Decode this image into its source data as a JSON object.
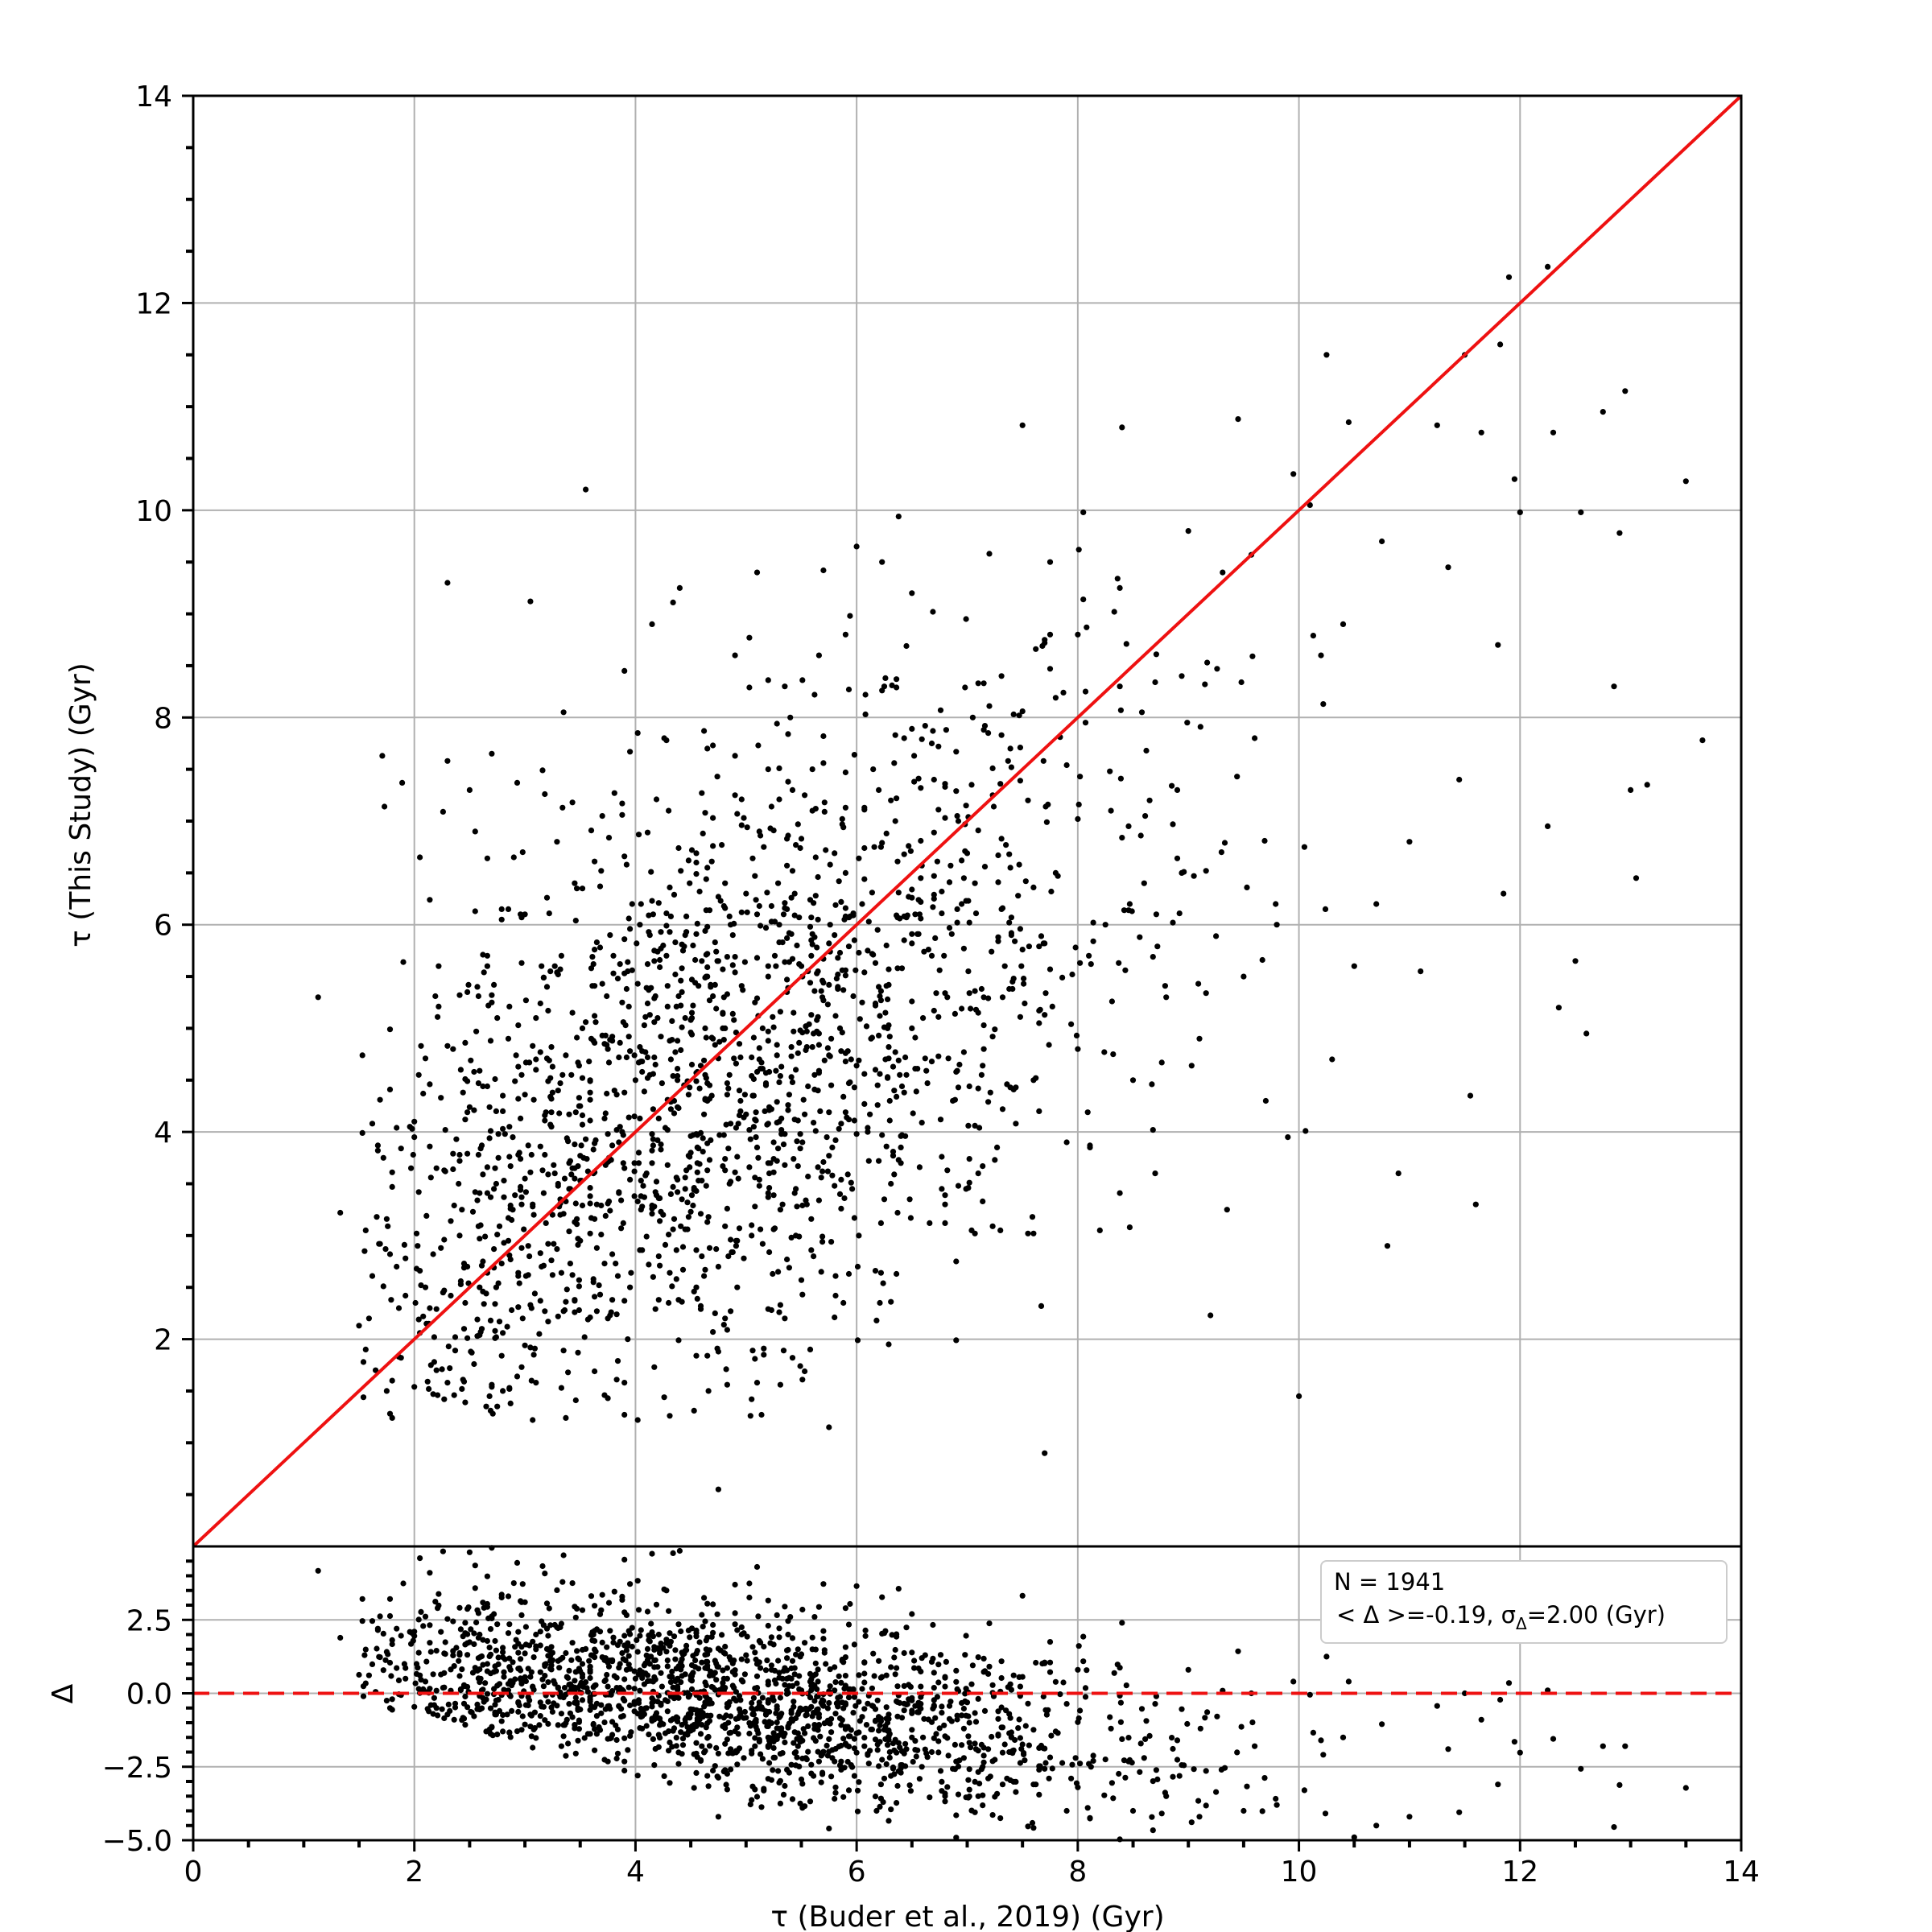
{
  "chart_data": [
    {
      "type": "scatter",
      "panel": "main",
      "xlabel": "τ (Buder et al.,  2019) (Gyr)",
      "ylabel": "τ (This Study) (Gyr)",
      "xlim": [
        0,
        14
      ],
      "ylim": [
        0,
        14
      ],
      "xticks": [
        0,
        2,
        4,
        6,
        8,
        10,
        12,
        14
      ],
      "xtick_labels": [
        "0",
        "2",
        "4",
        "6",
        "8",
        "10",
        "12",
        "14"
      ],
      "yticks": [
        2,
        4,
        6,
        8,
        10,
        12,
        14
      ],
      "ytick_labels": [
        "2",
        "4",
        "6",
        "8",
        "10",
        "12",
        "14"
      ],
      "grid": true,
      "reference_line": {
        "type": "identity",
        "color": "#ee1111",
        "style": "solid"
      },
      "point_color": "#000000",
      "points_total": 1941,
      "points": [
        [
          1.13,
          5.3
        ],
        [
          1.33,
          3.22
        ],
        [
          1.59,
          2.2
        ],
        [
          1.67,
          3.82
        ],
        [
          1.72,
          3.75
        ],
        [
          1.78,
          2.82
        ],
        [
          1.8,
          1.6
        ],
        [
          1.88,
          1.82
        ],
        [
          1.92,
          2.42
        ],
        [
          2.0,
          4.1
        ],
        [
          2.05,
          6.65
        ],
        [
          2.1,
          2.5
        ],
        [
          2.15,
          1.75
        ],
        [
          2.2,
          3.65
        ],
        [
          2.22,
          5.6
        ],
        [
          2.3,
          9.3
        ],
        [
          2.35,
          4.8
        ],
        [
          2.4,
          3.5
        ],
        [
          2.45,
          2.1
        ],
        [
          2.5,
          7.3
        ],
        [
          2.55,
          6.9
        ],
        [
          2.6,
          3.1
        ],
        [
          2.65,
          1.35
        ],
        [
          2.7,
          7.65
        ],
        [
          2.75,
          5.1
        ],
        [
          2.8,
          4.2
        ],
        [
          2.85,
          2.95
        ],
        [
          2.9,
          6.65
        ],
        [
          2.95,
          3.8
        ],
        [
          3.0,
          6.1
        ],
        [
          3.05,
          9.12
        ],
        [
          3.1,
          4.6
        ],
        [
          3.15,
          2.7
        ],
        [
          3.2,
          5.4
        ],
        [
          3.25,
          3.2
        ],
        [
          3.3,
          4.4
        ],
        [
          3.35,
          8.05
        ],
        [
          3.4,
          3.7
        ],
        [
          3.45,
          6.4
        ],
        [
          3.5,
          2.95
        ],
        [
          3.55,
          10.2
        ],
        [
          3.6,
          4.9
        ],
        [
          3.65,
          3.3
        ],
        [
          3.7,
          7.05
        ],
        [
          3.75,
          2.2
        ],
        [
          3.8,
          5.7
        ],
        [
          3.85,
          3.9
        ],
        [
          3.9,
          8.45
        ],
        [
          3.95,
          2.5
        ],
        [
          4.0,
          4.5
        ],
        [
          4.05,
          6.2
        ],
        [
          4.1,
          3.6
        ],
        [
          4.15,
          8.9
        ],
        [
          4.2,
          5.1
        ],
        [
          4.25,
          3.2
        ],
        [
          4.3,
          7.1
        ],
        [
          4.35,
          4.3
        ],
        [
          4.4,
          9.25
        ],
        [
          4.45,
          5.9
        ],
        [
          4.5,
          3.8
        ],
        [
          4.55,
          6.6
        ],
        [
          4.6,
          2.8
        ],
        [
          4.65,
          7.7
        ],
        [
          4.7,
          4.9
        ],
        [
          4.75,
          0.55
        ],
        [
          4.8,
          5.3
        ],
        [
          4.85,
          3.5
        ],
        [
          4.9,
          8.6
        ],
        [
          4.95,
          4.2
        ],
        [
          5.0,
          6.3
        ],
        [
          5.05,
          3.0
        ],
        [
          5.1,
          9.4
        ],
        [
          5.15,
          5.0
        ],
        [
          5.2,
          7.5
        ],
        [
          5.25,
          3.9
        ],
        [
          5.3,
          6.0
        ],
        [
          5.35,
          2.2
        ],
        [
          5.4,
          8.0
        ],
        [
          5.45,
          4.6
        ],
        [
          5.5,
          5.6
        ],
        [
          5.55,
          3.3
        ],
        [
          5.6,
          7.1
        ],
        [
          5.65,
          4.4
        ],
        [
          5.7,
          9.42
        ],
        [
          5.75,
          1.15
        ],
        [
          5.8,
          5.9
        ],
        [
          5.85,
          3.4
        ],
        [
          5.9,
          8.8
        ],
        [
          5.95,
          4.7
        ],
        [
          6.0,
          9.65
        ],
        [
          6.05,
          6.2
        ],
        [
          6.1,
          4.0
        ],
        [
          6.15,
          7.5
        ],
        [
          6.2,
          5.4
        ],
        [
          6.25,
          8.3
        ],
        [
          6.3,
          4.3
        ],
        [
          6.35,
          7.0
        ],
        [
          6.4,
          3.7
        ],
        [
          6.5,
          9.2
        ],
        [
          6.6,
          5.1
        ],
        [
          6.7,
          7.4
        ],
        [
          6.8,
          3.3
        ],
        [
          6.9,
          2.75
        ],
        [
          6.95,
          6.2
        ],
        [
          7.05,
          8.0
        ],
        [
          7.15,
          4.8
        ],
        [
          7.2,
          9.58
        ],
        [
          7.3,
          3.05
        ],
        [
          7.4,
          5.9
        ],
        [
          7.5,
          10.82
        ],
        [
          7.55,
          7.2
        ],
        [
          7.6,
          4.5
        ],
        [
          7.7,
          0.9
        ],
        [
          7.75,
          9.5
        ],
        [
          7.8,
          6.5
        ],
        [
          7.9,
          3.9
        ],
        [
          8.0,
          8.8
        ],
        [
          8.05,
          9.98
        ],
        [
          8.1,
          5.7
        ],
        [
          8.2,
          3.05
        ],
        [
          8.3,
          7.1
        ],
        [
          8.4,
          10.8
        ],
        [
          8.5,
          4.5
        ],
        [
          8.6,
          6.4
        ],
        [
          8.7,
          3.6
        ],
        [
          8.8,
          5.3
        ],
        [
          8.9,
          7.3
        ],
        [
          9.0,
          9.8
        ],
        [
          9.1,
          4.9
        ],
        [
          9.2,
          2.23
        ],
        [
          9.3,
          6.7
        ],
        [
          9.35,
          3.25
        ],
        [
          9.45,
          10.88
        ],
        [
          9.5,
          5.5
        ],
        [
          9.6,
          7.8
        ],
        [
          9.7,
          4.3
        ],
        [
          9.8,
          6.0
        ],
        [
          9.9,
          3.95
        ],
        [
          9.95,
          10.35
        ],
        [
          10.0,
          1.45
        ],
        [
          10.05,
          6.75
        ],
        [
          10.1,
          10.05
        ],
        [
          10.2,
          8.6
        ],
        [
          10.25,
          11.5
        ],
        [
          10.3,
          4.7
        ],
        [
          10.4,
          8.9
        ],
        [
          10.45,
          10.85
        ],
        [
          10.5,
          5.6
        ],
        [
          10.7,
          6.2
        ],
        [
          10.75,
          9.7
        ],
        [
          10.8,
          2.9
        ],
        [
          10.9,
          3.6
        ],
        [
          11.0,
          6.8
        ],
        [
          11.1,
          5.55
        ],
        [
          11.25,
          10.82
        ],
        [
          11.35,
          9.45
        ],
        [
          11.45,
          7.4
        ],
        [
          11.5,
          11.5
        ],
        [
          11.55,
          4.35
        ],
        [
          11.6,
          3.3
        ],
        [
          11.65,
          10.75
        ],
        [
          11.8,
          8.7
        ],
        [
          11.82,
          11.6
        ],
        [
          11.85,
          6.3
        ],
        [
          11.9,
          12.25
        ],
        [
          11.95,
          10.3
        ],
        [
          12.0,
          9.98
        ],
        [
          12.25,
          12.35
        ],
        [
          12.25,
          6.95
        ],
        [
          12.3,
          10.75
        ],
        [
          12.35,
          5.2
        ],
        [
          12.5,
          5.65
        ],
        [
          12.55,
          9.98
        ],
        [
          12.6,
          4.95
        ],
        [
          12.75,
          10.95
        ],
        [
          12.85,
          8.3
        ],
        [
          12.9,
          9.78
        ],
        [
          12.95,
          11.15
        ],
        [
          13.0,
          7.3
        ],
        [
          13.05,
          6.45
        ],
        [
          13.15,
          7.35
        ],
        [
          13.5,
          10.28
        ],
        [
          13.65,
          7.78
        ]
      ],
      "density_model": {
        "seed": 20191941,
        "x_center": 4.6,
        "x_spread": 2.0,
        "x_min": 1.5,
        "x_max": 13.0,
        "slope": 0.62,
        "intercept": 1.55,
        "y_spread": 1.5,
        "y_min": 1.2,
        "y_max": 10.5
      }
    },
    {
      "type": "scatter",
      "panel": "residual",
      "xlabel": "τ (Buder et al.,  2019) (Gyr)",
      "ylabel": "Δ",
      "xlim": [
        0,
        14
      ],
      "ylim": [
        -5.0,
        5.0
      ],
      "yticks": [
        -5.0,
        -2.5,
        0.0,
        2.5
      ],
      "ytick_labels": [
        "−5.0",
        "−2.5",
        "0.0",
        "2.5"
      ],
      "grid": true,
      "reference_line": {
        "type": "horizontal",
        "value": 0.0,
        "color": "#ee1111",
        "style": "dashed"
      },
      "point_color": "#000000",
      "note": "residual points are derived as Δ = τ(This Study) − τ(Buder et al., 2019) from the main panel points"
    }
  ],
  "legend": {
    "line1": "N = 1941",
    "line2_prefix": " < Δ >=-0.19, σ",
    "line2_subscript": "Δ",
    "line2_suffix": "=2.00 (Gyr)",
    "position": "top-right of residual panel"
  }
}
